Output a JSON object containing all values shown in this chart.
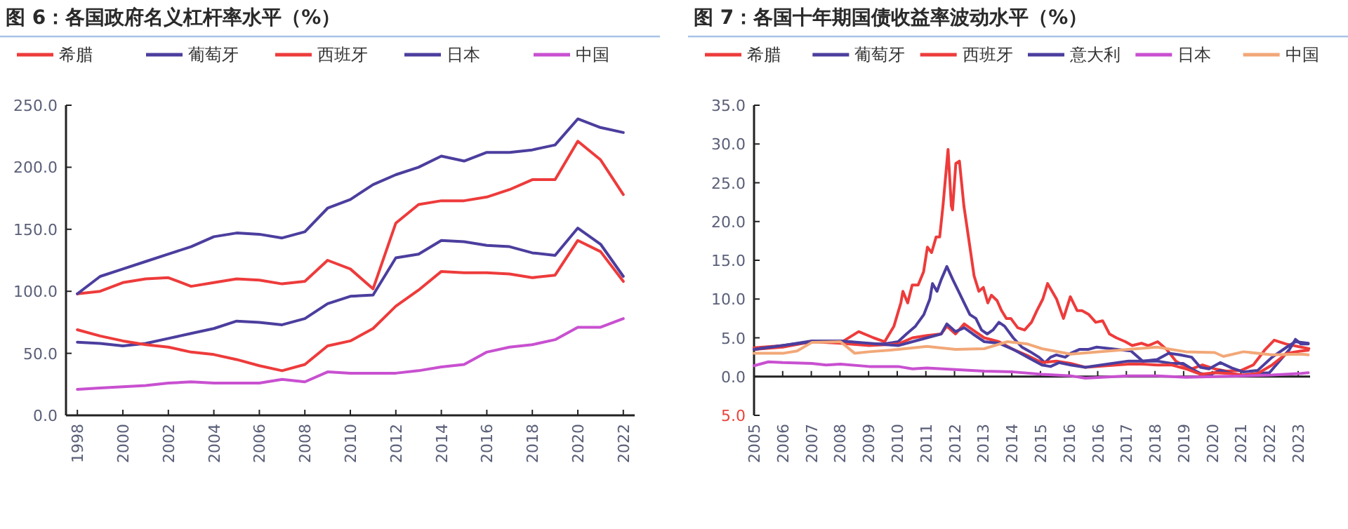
{
  "chart_data": [
    {
      "type": "line",
      "title": "图 6：各国政府名义杠杆率水平（%）",
      "legend": "top",
      "x": [
        1998,
        1999,
        2000,
        2001,
        2002,
        2003,
        2004,
        2005,
        2006,
        2007,
        2008,
        2009,
        2010,
        2011,
        2012,
        2013,
        2014,
        2015,
        2016,
        2017,
        2018,
        2019,
        2020,
        2021,
        2022
      ],
      "xlim": [
        1997.5,
        2022.5
      ],
      "xticks": [
        1998,
        2000,
        2002,
        2004,
        2006,
        2008,
        2010,
        2012,
        2014,
        2016,
        2018,
        2020,
        2022
      ],
      "ylim": [
        0,
        250
      ],
      "yticks": [
        {
          "value": 0,
          "label": "0.0"
        },
        {
          "value": 50,
          "label": "50.0"
        },
        {
          "value": 100,
          "label": "100.0"
        },
        {
          "value": 150,
          "label": "150.0"
        },
        {
          "value": 200,
          "label": "200.0"
        },
        {
          "value": 250,
          "label": "250.0"
        }
      ],
      "series": [
        {
          "name": "希腊",
          "color": "#ee3b3b",
          "values": [
            98,
            100,
            107,
            110,
            111,
            104,
            107,
            110,
            109,
            106,
            108,
            125,
            118,
            102,
            155,
            170,
            173,
            173,
            176,
            182,
            190,
            190,
            221,
            206,
            178
          ]
        },
        {
          "name": "葡萄牙",
          "color": "#4b3e9e",
          "values": [
            59,
            58,
            56,
            58,
            62,
            66,
            70,
            76,
            75,
            73,
            78,
            90,
            96,
            97,
            127,
            130,
            141,
            140,
            137,
            136,
            131,
            129,
            151,
            138,
            112
          ]
        },
        {
          "name": "西班牙",
          "color": "#ee3b3b",
          "values": [
            69,
            64,
            60,
            57,
            55,
            51,
            49,
            45,
            40,
            36,
            41,
            56,
            60,
            70,
            88,
            101,
            116,
            115,
            115,
            114,
            111,
            113,
            141,
            132,
            108
          ]
        },
        {
          "name": "日本",
          "color": "#4b3e9e",
          "values": [
            98,
            112,
            118,
            124,
            130,
            136,
            144,
            147,
            146,
            143,
            148,
            167,
            174,
            186,
            194,
            200,
            209,
            205,
            212,
            212,
            214,
            218,
            239,
            232,
            228
          ]
        },
        {
          "name": "中国",
          "color": "#c850d0",
          "values": [
            21,
            22,
            23,
            24,
            26,
            27,
            26,
            26,
            26,
            29,
            27,
            35,
            34,
            34,
            34,
            36,
            39,
            41,
            51,
            55,
            57,
            61,
            71,
            71,
            78
          ]
        }
      ]
    },
    {
      "type": "line",
      "title": "图 7：各国十年期国债收益率波动水平（%）",
      "legend": "top",
      "xlim": [
        2005,
        2023.6
      ],
      "xticks": [
        {
          "value": 2005,
          "label": "2005"
        },
        {
          "value": 2005.958,
          "label": "2006"
        },
        {
          "value": 2006.916,
          "label": "2007"
        },
        {
          "value": 2007.874,
          "label": "2008"
        },
        {
          "value": 2008.832,
          "label": "2009"
        },
        {
          "value": 2009.79,
          "label": "2010"
        },
        {
          "value": 2010.748,
          "label": "2011"
        },
        {
          "value": 2011.706,
          "label": "2012"
        },
        {
          "value": 2012.664,
          "label": "2013"
        },
        {
          "value": 2013.622,
          "label": "2014"
        },
        {
          "value": 2014.58,
          "label": "2015"
        },
        {
          "value": 2015.538,
          "label": "2016"
        },
        {
          "value": 2016.496,
          "label": "2016"
        },
        {
          "value": 2017.454,
          "label": "2017"
        },
        {
          "value": 2018.412,
          "label": "2018"
        },
        {
          "value": 2019.37,
          "label": "2019"
        },
        {
          "value": 2020.328,
          "label": "2020"
        },
        {
          "value": 2021.286,
          "label": "2021"
        },
        {
          "value": 2022.244,
          "label": "2022"
        },
        {
          "value": 2023.202,
          "label": "2023"
        }
      ],
      "ylim": [
        -5,
        35
      ],
      "yticks": [
        {
          "value": -5,
          "label": "5.0"
        },
        {
          "value": 0,
          "label": "0.0"
        },
        {
          "value": 5,
          "label": "5.0"
        },
        {
          "value": 10,
          "label": "10.0"
        },
        {
          "value": 15,
          "label": "15.0"
        },
        {
          "value": 20,
          "label": "20.0"
        },
        {
          "value": 25,
          "label": "25.0"
        },
        {
          "value": 30,
          "label": "30.0"
        },
        {
          "value": 35,
          "label": "35.0"
        }
      ],
      "series": [
        {
          "name": "希腊",
          "color": "#ee3b3b",
          "x": [
            2005,
            2006,
            2007,
            2008,
            2008.5,
            2009,
            2009.37,
            2009.68,
            2009.91,
            2009.98,
            2010.14,
            2010.29,
            2010.49,
            2010.67,
            2010.8,
            2010.94,
            2011.09,
            2011.21,
            2011.32,
            2011.49,
            2011.6,
            2011.64,
            2011.75,
            2011.87,
            2012.02,
            2012.21,
            2012.36,
            2012.52,
            2012.67,
            2012.82,
            2012.94,
            2013.13,
            2013.28,
            2013.44,
            2013.59,
            2013.82,
            2014.05,
            2014.28,
            2014.46,
            2014.66,
            2014.82,
            2014.97,
            2015.12,
            2015.35,
            2015.58,
            2015.81,
            2015.97,
            2016.2,
            2016.43,
            2016.66,
            2016.89,
            2017.12,
            2017.42,
            2017.65,
            2017.96,
            2018.19,
            2018.5,
            2018.8,
            2019.11,
            2019.34,
            2019.65,
            2020.0,
            2020.4,
            2020.8,
            2021.3,
            2021.7,
            2022.1,
            2022.4,
            2022.8,
            2023.3,
            2023.56
          ],
          "values": [
            3.7,
            4.0,
            4.5,
            4.6,
            5.8,
            5.0,
            4.5,
            6.5,
            9.5,
            11,
            9.5,
            11.8,
            11.8,
            13.5,
            16.7,
            16.0,
            18,
            18,
            22,
            29.3,
            22,
            21.5,
            27.5,
            27.8,
            22,
            17,
            13,
            11,
            11.5,
            9.5,
            10.5,
            9.8,
            8.5,
            7.5,
            7.5,
            6.3,
            6,
            7.0,
            8.5,
            10,
            12,
            11,
            10,
            7.5,
            10.3,
            8.5,
            8.5,
            8,
            7,
            7.2,
            5.5,
            5,
            4.5,
            4,
            4.3,
            4,
            4.5,
            3.5,
            2.0,
            1.5,
            1.0,
            1.5,
            1.0,
            0.7,
            0.8,
            1.5,
            3.5,
            4.7,
            4.2,
            3.8,
            3.6
          ]
        },
        {
          "name": "葡萄牙",
          "color": "#4b3e9e",
          "x": [
            2005,
            2005.96,
            2006.93,
            2007.89,
            2008.85,
            2009.33,
            2009.82,
            2010.1,
            2010.4,
            2010.68,
            2010.88,
            2010.97,
            2011.12,
            2011.26,
            2011.45,
            2011.65,
            2011.84,
            2012.03,
            2012.22,
            2012.42,
            2012.61,
            2012.8,
            2012.99,
            2013.19,
            2013.38,
            2013.67,
            2013.96,
            2014.24,
            2014.53,
            2014.73,
            2014.92,
            2015.11,
            2015.41,
            2015.59,
            2015.88,
            2016.17,
            2016.46,
            2017.61,
            2018.0,
            2018.29,
            2018.48,
            2018.96,
            2019.35,
            2019.64,
            2019.93,
            2020.22,
            2020.6,
            2020.99,
            2021.37,
            2021.85,
            2022.24,
            2022.62,
            2022.91,
            2023.11,
            2023.3,
            2023.54
          ],
          "values": [
            3.5,
            4.0,
            4.6,
            4.6,
            4.2,
            4.2,
            4.5,
            5.5,
            6.5,
            8,
            10,
            12,
            11,
            12.5,
            14.2,
            12.5,
            11,
            9.5,
            8,
            7.5,
            6,
            5.5,
            6.0,
            7.0,
            6.5,
            5,
            3.8,
            3.2,
            2.5,
            1.8,
            2.5,
            2.8,
            2.5,
            3.0,
            3.5,
            3.5,
            3.8,
            3.3,
            2.0,
            2.0,
            2.0,
            1.7,
            1.7,
            1.0,
            0.4,
            0.2,
            0.8,
            0.4,
            0.1,
            0.4,
            0.5,
            2.2,
            3.5,
            4.8,
            4.2,
            4.2
          ]
        },
        {
          "name": "西班牙",
          "color": "#ee3b3b",
          "x": [
            2005,
            2005.96,
            2006.93,
            2007.89,
            2008.85,
            2009.82,
            2010.3,
            2010.78,
            2011.26,
            2011.45,
            2011.74,
            2012.03,
            2012.32,
            2012.7,
            2013.19,
            2013.67,
            2014.15,
            2014.63,
            2015.11,
            2015.59,
            2016.08,
            2017.52,
            2018.0,
            2018.48,
            2018.96,
            2019.45,
            2019.93,
            2020.41,
            2020.89,
            2021.37,
            2021.85,
            2022.33,
            2022.82,
            2023.3,
            2023.54
          ],
          "values": [
            3.5,
            3.8,
            4.5,
            4.3,
            4.0,
            4.2,
            5,
            5.3,
            5.5,
            6.5,
            5.5,
            6.8,
            6.0,
            5.0,
            4.5,
            3.5,
            2.7,
            1.8,
            2.0,
            1.7,
            1.2,
            1.6,
            1.6,
            1.5,
            1.5,
            1.0,
            0.3,
            0.5,
            0.4,
            0.2,
            0.4,
            1.5,
            3.0,
            3.3,
            3.4
          ]
        },
        {
          "name": "意大利",
          "color": "#4b3e9e",
          "x": [
            2005,
            2005.96,
            2006.93,
            2007.89,
            2008.85,
            2009.82,
            2010.3,
            2010.78,
            2011.26,
            2011.45,
            2011.74,
            2012.03,
            2012.32,
            2012.7,
            2013.19,
            2013.67,
            2014.15,
            2014.63,
            2014.92,
            2015.2,
            2015.59,
            2016.08,
            2017.52,
            2018.0,
            2018.48,
            2018.87,
            2019.25,
            2019.64,
            2019.93,
            2020.22,
            2020.6,
            2020.99,
            2021.37,
            2021.85,
            2022.33,
            2022.82,
            2023.11,
            2023.54
          ],
          "values": [
            3.5,
            4.0,
            4.5,
            4.6,
            4.3,
            4.0,
            4.5,
            5.0,
            5.5,
            6.8,
            5.8,
            6.3,
            5.5,
            4.5,
            4.3,
            3.5,
            2.5,
            1.5,
            1.3,
            1.8,
            1.5,
            1.2,
            2.0,
            2.0,
            2.2,
            3.0,
            2.8,
            2.5,
            1.2,
            1.0,
            1.8,
            1.1,
            0.6,
            0.8,
            2.5,
            3.8,
            4.5,
            4.3
          ]
        },
        {
          "name": "日本",
          "color": "#c850d0",
          "x": [
            2005,
            2005.48,
            2005.96,
            2006.93,
            2007.41,
            2007.89,
            2008.85,
            2009.82,
            2010.3,
            2010.78,
            2011.74,
            2012.7,
            2013.67,
            2014.63,
            2015.59,
            2016.08,
            2017.52,
            2018.48,
            2019.45,
            2020.41,
            2021.37,
            2022.33,
            2023.3,
            2023.54
          ],
          "values": [
            1.4,
            1.9,
            1.8,
            1.7,
            1.5,
            1.6,
            1.3,
            1.3,
            1.0,
            1.1,
            0.9,
            0.7,
            0.6,
            0.3,
            0.1,
            -0.2,
            0.1,
            0.1,
            -0.1,
            0.0,
            0.1,
            0.2,
            0.4,
            0.5
          ]
        },
        {
          "name": "中国",
          "color": "#f2a878",
          "x": [
            2005,
            2005.96,
            2006.44,
            2006.93,
            2007.89,
            2008.37,
            2008.85,
            2009.82,
            2010.78,
            2011.74,
            2012.7,
            2013.48,
            2014.15,
            2014.63,
            2015.59,
            2017.52,
            2018.48,
            2019.45,
            2020.41,
            2020.7,
            2021.37,
            2022.33,
            2023.3,
            2023.54
          ],
          "values": [
            3.0,
            3.0,
            3.3,
            4.4,
            4.5,
            3.0,
            3.2,
            3.5,
            3.9,
            3.5,
            3.6,
            4.5,
            4.2,
            3.6,
            2.9,
            3.5,
            3.8,
            3.2,
            3.1,
            2.6,
            3.2,
            2.8,
            2.9,
            2.8
          ]
        }
      ]
    }
  ]
}
